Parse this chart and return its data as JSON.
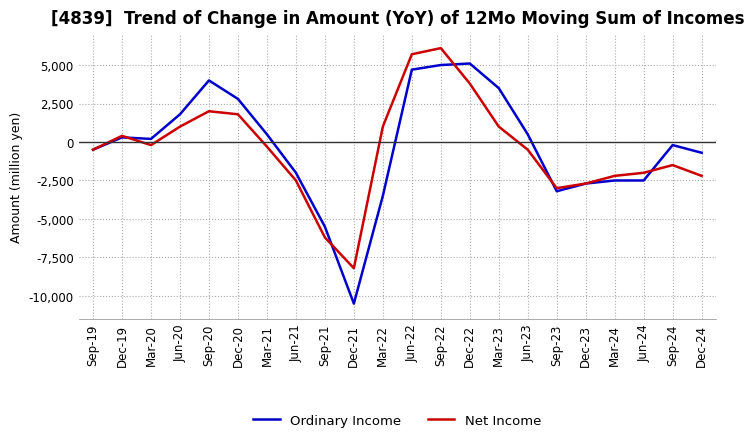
{
  "title": "[4839]  Trend of Change in Amount (YoY) of 12Mo Moving Sum of Incomes",
  "ylabel": "Amount (million yen)",
  "xlabel": "",
  "title_fontsize": 12,
  "label_fontsize": 9,
  "tick_fontsize": 8.5,
  "background_color": "#ffffff",
  "plot_background_color": "#ffffff",
  "ordinary_income_color": "#0000cc",
  "net_income_color": "#cc0000",
  "line_width": 1.8,
  "ylim": [
    -11500,
    7000
  ],
  "yticks": [
    5000,
    2500,
    0,
    -2500,
    -5000,
    -7500,
    -10000
  ],
  "x_labels": [
    "Sep-19",
    "Dec-19",
    "Mar-20",
    "Jun-20",
    "Sep-20",
    "Dec-20",
    "Mar-21",
    "Jun-21",
    "Sep-21",
    "Dec-21",
    "Mar-22",
    "Jun-22",
    "Sep-22",
    "Dec-22",
    "Mar-23",
    "Jun-23",
    "Sep-23",
    "Dec-23",
    "Mar-24",
    "Jun-24",
    "Sep-24",
    "Dec-24"
  ],
  "ordinary_income": [
    -500,
    300,
    200,
    1800,
    4000,
    2800,
    500,
    -2000,
    -5500,
    -10500,
    -3500,
    4700,
    5000,
    5100,
    3500,
    500,
    -3200,
    -2700,
    -2500,
    -2500,
    -200,
    -700
  ],
  "net_income": [
    -500,
    400,
    -200,
    1000,
    2000,
    1800,
    -300,
    -2500,
    -6200,
    -8200,
    1000,
    5700,
    6100,
    3800,
    1000,
    -500,
    -3000,
    -2700,
    -2200,
    -2000,
    -1500,
    -2200
  ]
}
